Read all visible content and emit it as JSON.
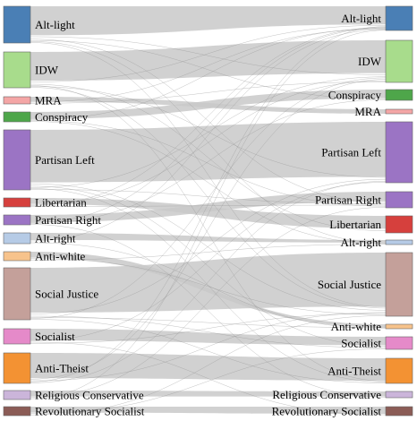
{
  "sankey": {
    "left_nodes": [
      {
        "id": "alt-light",
        "label": "Alt-light",
        "color": "#4a7fb5"
      },
      {
        "id": "idw",
        "label": "IDW",
        "color": "#a8dc8c"
      },
      {
        "id": "mra",
        "label": "MRA",
        "color": "#f4a6a6"
      },
      {
        "id": "conspiracy",
        "label": "Conspiracy",
        "color": "#4ea64a"
      },
      {
        "id": "partisan-left",
        "label": "Partisan Left",
        "color": "#9b74c4"
      },
      {
        "id": "libertarian",
        "label": "Libertarian",
        "color": "#d6403d"
      },
      {
        "id": "partisan-right",
        "label": "Partisan Right",
        "color": "#9b74c4"
      },
      {
        "id": "alt-right",
        "label": "Alt-right",
        "color": "#b6cbe6"
      },
      {
        "id": "anti-white",
        "label": "Anti-white",
        "color": "#f7c38c"
      },
      {
        "id": "social-justice",
        "label": "Social Justice",
        "color": "#c4a09a"
      },
      {
        "id": "socialist",
        "label": "Socialist",
        "color": "#e58ac9"
      },
      {
        "id": "anti-theist",
        "label": "Anti-Theist",
        "color": "#f39233"
      },
      {
        "id": "religious-conservative",
        "label": "Religious Conservative",
        "color": "#cbb5da"
      },
      {
        "id": "revolutionary-socialist",
        "label": "Revolutionary Socialist",
        "color": "#8b5c56"
      }
    ],
    "right_nodes": [
      {
        "id": "alt-light",
        "label": "Alt-light",
        "color": "#4a7fb5"
      },
      {
        "id": "idw",
        "label": "IDW",
        "color": "#a8dc8c"
      },
      {
        "id": "conspiracy",
        "label": "Conspiracy",
        "color": "#4ea64a"
      },
      {
        "id": "mra",
        "label": "MRA",
        "color": "#f4a6a6"
      },
      {
        "id": "partisan-left",
        "label": "Partisan Left",
        "color": "#9b74c4"
      },
      {
        "id": "partisan-right",
        "label": "Partisan Right",
        "color": "#9b74c4"
      },
      {
        "id": "libertarian",
        "label": "Libertarian",
        "color": "#d6403d"
      },
      {
        "id": "alt-right",
        "label": "Alt-right",
        "color": "#b6cbe6"
      },
      {
        "id": "social-justice",
        "label": "Social Justice",
        "color": "#c4a09a"
      },
      {
        "id": "anti-white",
        "label": "Anti-white",
        "color": "#f7c38c"
      },
      {
        "id": "socialist",
        "label": "Socialist",
        "color": "#e58ac9"
      },
      {
        "id": "anti-theist",
        "label": "Anti-Theist",
        "color": "#f39233"
      },
      {
        "id": "religious-conservative",
        "label": "Religious Conservative",
        "color": "#cbb5da"
      },
      {
        "id": "revolutionary-socialist",
        "label": "Revolutionary Socialist",
        "color": "#8b5c56"
      }
    ],
    "flows": [
      {
        "from": "alt-light",
        "to": "alt-light",
        "weight": 30
      },
      {
        "from": "idw",
        "to": "idw",
        "weight": 32
      },
      {
        "from": "conspiracy",
        "to": "conspiracy",
        "weight": 8
      },
      {
        "from": "mra",
        "to": "mra",
        "weight": 4
      },
      {
        "from": "partisan-left",
        "to": "partisan-left",
        "weight": 56
      },
      {
        "from": "partisan-right",
        "to": "partisan-right",
        "weight": 9
      },
      {
        "from": "libertarian",
        "to": "libertarian",
        "weight": 6
      },
      {
        "from": "alt-right",
        "to": "alt-right",
        "weight": 4
      },
      {
        "from": "social-justice",
        "to": "social-justice",
        "weight": 50
      },
      {
        "from": "anti-white",
        "to": "anti-white",
        "weight": 4
      },
      {
        "from": "socialist",
        "to": "socialist",
        "weight": 10
      },
      {
        "from": "anti-theist",
        "to": "anti-theist",
        "weight": 24
      },
      {
        "from": "religious-conservative",
        "to": "religious-conservative",
        "weight": 4
      },
      {
        "from": "revolutionary-socialist",
        "to": "revolutionary-socialist",
        "weight": 4
      },
      {
        "from": "alt-light",
        "to": "idw",
        "weight": 3
      },
      {
        "from": "alt-light",
        "to": "partisan-right",
        "weight": 2
      },
      {
        "from": "alt-light",
        "to": "conspiracy",
        "weight": 1
      },
      {
        "from": "alt-light",
        "to": "alt-right",
        "weight": 1
      },
      {
        "from": "alt-light",
        "to": "social-justice",
        "weight": 1
      },
      {
        "from": "idw",
        "to": "alt-light",
        "weight": 3
      },
      {
        "from": "idw",
        "to": "libertarian",
        "weight": 2
      },
      {
        "from": "idw",
        "to": "anti-theist",
        "weight": 1
      },
      {
        "from": "idw",
        "to": "partisan-left",
        "weight": 1
      },
      {
        "from": "idw",
        "to": "social-justice",
        "weight": 1
      },
      {
        "from": "partisan-left",
        "to": "social-justice",
        "weight": 3
      },
      {
        "from": "partisan-left",
        "to": "socialist",
        "weight": 2
      },
      {
        "from": "partisan-left",
        "to": "idw",
        "weight": 1
      },
      {
        "from": "partisan-left",
        "to": "anti-theist",
        "weight": 1
      },
      {
        "from": "partisan-left",
        "to": "partisan-right",
        "weight": 1
      },
      {
        "from": "social-justice",
        "to": "partisan-left",
        "weight": 3
      },
      {
        "from": "social-justice",
        "to": "socialist",
        "weight": 2
      },
      {
        "from": "social-justice",
        "to": "anti-white",
        "weight": 1
      },
      {
        "from": "social-justice",
        "to": "idw",
        "weight": 1
      },
      {
        "from": "social-justice",
        "to": "anti-theist",
        "weight": 1
      },
      {
        "from": "anti-theist",
        "to": "idw",
        "weight": 2
      },
      {
        "from": "anti-theist",
        "to": "social-justice",
        "weight": 1
      },
      {
        "from": "anti-theist",
        "to": "alt-light",
        "weight": 1
      },
      {
        "from": "anti-theist",
        "to": "partisan-left",
        "weight": 1
      },
      {
        "from": "socialist",
        "to": "partisan-left",
        "weight": 1
      },
      {
        "from": "socialist",
        "to": "revolutionary-socialist",
        "weight": 1
      },
      {
        "from": "socialist",
        "to": "social-justice",
        "weight": 1
      },
      {
        "from": "libertarian",
        "to": "idw",
        "weight": 1
      },
      {
        "from": "libertarian",
        "to": "alt-light",
        "weight": 1
      },
      {
        "from": "libertarian",
        "to": "partisan-right",
        "weight": 1
      },
      {
        "from": "partisan-right",
        "to": "alt-light",
        "weight": 1
      },
      {
        "from": "partisan-right",
        "to": "conspiracy",
        "weight": 1
      },
      {
        "from": "partisan-right",
        "to": "religious-conservative",
        "weight": 1
      },
      {
        "from": "conspiracy",
        "to": "alt-light",
        "weight": 1
      },
      {
        "from": "conspiracy",
        "to": "partisan-right",
        "weight": 1
      },
      {
        "from": "conspiracy",
        "to": "alt-right",
        "weight": 1
      },
      {
        "from": "mra",
        "to": "alt-light",
        "weight": 1
      },
      {
        "from": "mra",
        "to": "idw",
        "weight": 1
      },
      {
        "from": "alt-right",
        "to": "alt-light",
        "weight": 1
      },
      {
        "from": "alt-right",
        "to": "anti-white",
        "weight": 1
      },
      {
        "from": "anti-white",
        "to": "social-justice",
        "weight": 1
      },
      {
        "from": "anti-white",
        "to": "alt-right",
        "weight": 1
      },
      {
        "from": "religious-conservative",
        "to": "partisan-right",
        "weight": 1
      },
      {
        "from": "religious-conservative",
        "to": "alt-light",
        "weight": 1
      },
      {
        "from": "revolutionary-socialist",
        "to": "socialist",
        "weight": 1
      },
      {
        "from": "revolutionary-socialist",
        "to": "social-justice",
        "weight": 1
      }
    ]
  }
}
